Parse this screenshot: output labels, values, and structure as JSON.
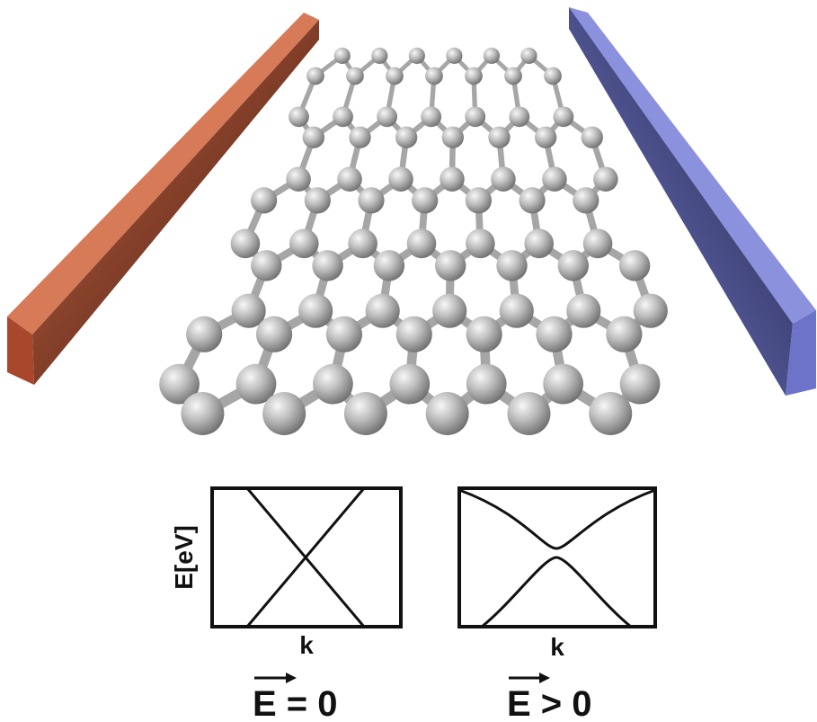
{
  "colors": {
    "left_electrode": "#b4553a",
    "right_electrode": "#5a62b0",
    "atom": "#b8b8b8",
    "bond": "#a6a6a6",
    "line": "#111111"
  },
  "panels": [
    {
      "id": "field-zero",
      "y_label": "E[eV]",
      "x_label": "k",
      "caption": "E = 0",
      "gap": false
    },
    {
      "id": "field-positive",
      "x_label": "k",
      "caption": "E > 0",
      "gap": true
    }
  ]
}
